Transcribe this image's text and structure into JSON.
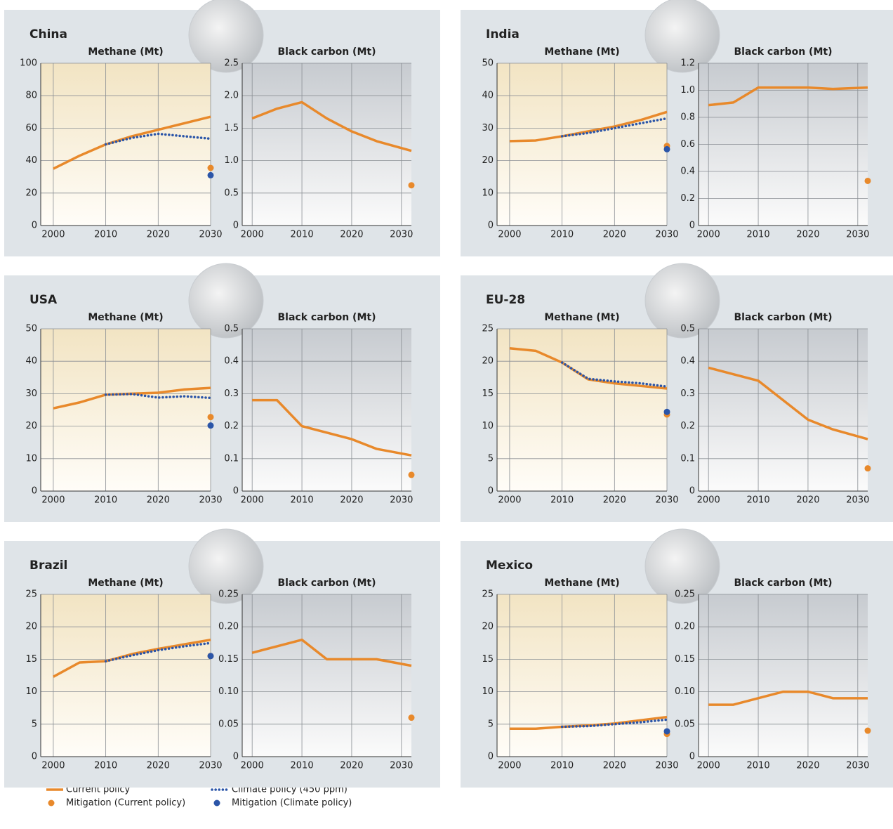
{
  "chart_data": [
    {
      "type": "line",
      "country": "China",
      "title": "Methane (Mt)",
      "x": [
        2000,
        2005,
        2010,
        2015,
        2020,
        2025,
        2030
      ],
      "xlim": [
        1997.6,
        2030
      ],
      "xticks": [
        2000,
        2010,
        2020,
        2030
      ],
      "ylim": [
        0,
        100
      ],
      "yticks": [
        0,
        20,
        40,
        60,
        80,
        100
      ],
      "grid": true,
      "series": [
        {
          "name": "Current policy",
          "color": "#e8892b",
          "style": "solid",
          "values": [
            35,
            43,
            50,
            55,
            59,
            63,
            67
          ]
        },
        {
          "name": "Climate policy (450 ppm)",
          "color": "#2b55a8",
          "style": "dotted",
          "values": [
            null,
            null,
            50,
            54,
            56.5,
            55,
            53.5
          ]
        },
        {
          "name": "Mitigation (Current policy)",
          "color": "#e8892b",
          "style": "point",
          "values": [
            null,
            null,
            null,
            null,
            null,
            null,
            35.5
          ]
        },
        {
          "name": "Mitigation (Climate policy)",
          "color": "#2b55a8",
          "style": "point",
          "values": [
            null,
            null,
            null,
            null,
            null,
            null,
            31
          ]
        }
      ]
    },
    {
      "type": "line",
      "title": "Black carbon (Mt)",
      "x": [
        2000,
        2005,
        2010,
        2015,
        2020,
        2025,
        2032
      ],
      "xlim": [
        1998,
        2032
      ],
      "xticks": [
        2000,
        2010,
        2020,
        2030
      ],
      "ylim": [
        0,
        2.5
      ],
      "yticks": [
        0,
        0.5,
        {
          "value": 1,
          "label": "1.0"
        },
        1.5,
        {
          "value": 2,
          "label": "2.0"
        },
        2.5
      ],
      "grid": true,
      "series": [
        {
          "name": "Current policy",
          "color": "#e8892b",
          "style": "solid",
          "values": [
            1.65,
            1.8,
            1.9,
            1.65,
            1.45,
            1.3,
            1.15
          ]
        },
        {
          "name": "Mitigation (Current policy)",
          "color": "#e8892b",
          "style": "point",
          "values": [
            null,
            null,
            null,
            null,
            null,
            null,
            0.62
          ]
        }
      ]
    },
    {
      "type": "line",
      "country": "India",
      "title": "Methane (Mt)",
      "x": [
        2000,
        2005,
        2010,
        2015,
        2020,
        2025,
        2030
      ],
      "xlim": [
        1997.6,
        2030
      ],
      "xticks": [
        2000,
        2010,
        2020,
        2030
      ],
      "ylim": [
        0,
        50
      ],
      "yticks": [
        0,
        10,
        20,
        30,
        40,
        50
      ],
      "grid": true,
      "series": [
        {
          "name": "Current policy",
          "color": "#e8892b",
          "style": "solid",
          "values": [
            26,
            26.2,
            27.5,
            29,
            30.5,
            32.5,
            35
          ]
        },
        {
          "name": "Climate policy (450 ppm)",
          "color": "#2b55a8",
          "style": "dotted",
          "values": [
            null,
            null,
            27.5,
            28.5,
            30,
            31.5,
            33
          ]
        },
        {
          "name": "Mitigation (Current policy)",
          "color": "#e8892b",
          "style": "point",
          "values": [
            null,
            null,
            null,
            null,
            null,
            null,
            24.5
          ]
        },
        {
          "name": "Mitigation (Climate policy)",
          "color": "#2b55a8",
          "style": "point",
          "values": [
            null,
            null,
            null,
            null,
            null,
            null,
            23.5
          ]
        }
      ]
    },
    {
      "type": "line",
      "title": "Black carbon (Mt)",
      "x": [
        2000,
        2005,
        2010,
        2015,
        2020,
        2025,
        2032
      ],
      "xlim": [
        1998,
        2032
      ],
      "xticks": [
        2000,
        2010,
        2020,
        2030
      ],
      "ylim": [
        0,
        1.2
      ],
      "yticks": [
        0,
        0.2,
        0.4,
        0.6,
        0.8,
        {
          "value": 1,
          "label": "1.0"
        },
        1.2
      ],
      "grid": true,
      "series": [
        {
          "name": "Current policy",
          "color": "#e8892b",
          "style": "solid",
          "values": [
            0.89,
            0.91,
            1.02,
            1.02,
            1.02,
            1.01,
            1.02
          ]
        },
        {
          "name": "Mitigation (Current policy)",
          "color": "#e8892b",
          "style": "point",
          "values": [
            null,
            null,
            null,
            null,
            null,
            null,
            0.33
          ]
        }
      ]
    },
    {
      "type": "line",
      "country": "USA",
      "title": "Methane (Mt)",
      "x": [
        2000,
        2005,
        2010,
        2015,
        2020,
        2025,
        2030
      ],
      "xlim": [
        1997.6,
        2030
      ],
      "xticks": [
        2000,
        2010,
        2020,
        2030
      ],
      "ylim": [
        0,
        50
      ],
      "yticks": [
        0,
        10,
        20,
        30,
        40,
        50
      ],
      "grid": true,
      "series": [
        {
          "name": "Current policy",
          "color": "#e8892b",
          "style": "solid",
          "values": [
            25.5,
            27.3,
            29.7,
            30,
            30.3,
            31.3,
            31.8
          ]
        },
        {
          "name": "Climate policy (450 ppm)",
          "color": "#2b55a8",
          "style": "dotted",
          "values": [
            null,
            null,
            29.7,
            29.9,
            28.8,
            29.2,
            28.7
          ]
        },
        {
          "name": "Mitigation (Current policy)",
          "color": "#e8892b",
          "style": "point",
          "values": [
            null,
            null,
            null,
            null,
            null,
            null,
            22.8
          ]
        },
        {
          "name": "Mitigation (Climate policy)",
          "color": "#2b55a8",
          "style": "point",
          "values": [
            null,
            null,
            null,
            null,
            null,
            null,
            20.2
          ]
        }
      ]
    },
    {
      "type": "line",
      "title": "Black carbon (Mt)",
      "x": [
        2000,
        2005,
        2010,
        2015,
        2020,
        2025,
        2032
      ],
      "xlim": [
        1998,
        2032
      ],
      "xticks": [
        2000,
        2010,
        2020,
        2030
      ],
      "ylim": [
        0,
        0.5
      ],
      "yticks": [
        0,
        0.1,
        0.2,
        0.3,
        0.4,
        0.5
      ],
      "grid": true,
      "series": [
        {
          "name": "Current policy",
          "color": "#e8892b",
          "style": "solid",
          "values": [
            0.28,
            0.28,
            0.2,
            0.18,
            0.16,
            0.13,
            0.11
          ]
        },
        {
          "name": "Mitigation (Current policy)",
          "color": "#e8892b",
          "style": "point",
          "values": [
            null,
            null,
            null,
            null,
            null,
            null,
            0.05
          ]
        }
      ]
    },
    {
      "type": "line",
      "country": "EU-28",
      "title": "Methane (Mt)",
      "x": [
        2000,
        2005,
        2010,
        2015,
        2020,
        2025,
        2030
      ],
      "xlim": [
        1997.6,
        2030
      ],
      "xticks": [
        2000,
        2010,
        2020,
        2030
      ],
      "ylim": [
        0,
        25
      ],
      "yticks": [
        0,
        5,
        10,
        15,
        20,
        25
      ],
      "grid": true,
      "series": [
        {
          "name": "Current policy",
          "color": "#e8892b",
          "style": "solid",
          "values": [
            22,
            21.6,
            19.8,
            17.2,
            16.6,
            16.2,
            15.8
          ]
        },
        {
          "name": "Climate policy (450 ppm)",
          "color": "#2b55a8",
          "style": "dotted",
          "values": [
            null,
            null,
            19.8,
            17.3,
            16.9,
            16.6,
            16.1
          ]
        },
        {
          "name": "Mitigation (Current policy)",
          "color": "#e8892b",
          "style": "point",
          "values": [
            null,
            null,
            null,
            null,
            null,
            null,
            11.8
          ]
        },
        {
          "name": "Mitigation (Climate policy)",
          "color": "#2b55a8",
          "style": "point",
          "values": [
            null,
            null,
            null,
            null,
            null,
            null,
            12.2
          ]
        }
      ]
    },
    {
      "type": "line",
      "title": "Black carbon (Mt)",
      "x": [
        2000,
        2005,
        2010,
        2015,
        2020,
        2025,
        2032
      ],
      "xlim": [
        1998,
        2032
      ],
      "xticks": [
        2000,
        2010,
        2020,
        2030
      ],
      "ylim": [
        0,
        0.5
      ],
      "yticks": [
        0,
        0.1,
        0.2,
        0.3,
        0.4,
        0.5
      ],
      "grid": true,
      "series": [
        {
          "name": "Current policy",
          "color": "#e8892b",
          "style": "solid",
          "values": [
            0.38,
            0.36,
            0.34,
            0.28,
            0.22,
            0.19,
            0.16
          ]
        },
        {
          "name": "Mitigation (Current policy)",
          "color": "#e8892b",
          "style": "point",
          "values": [
            null,
            null,
            null,
            null,
            null,
            null,
            0.07
          ]
        }
      ]
    },
    {
      "type": "line",
      "country": "Brazil",
      "title": "Methane (Mt)",
      "x": [
        2000,
        2005,
        2010,
        2015,
        2020,
        2025,
        2030
      ],
      "xlim": [
        1997.6,
        2030
      ],
      "xticks": [
        2000,
        2010,
        2020,
        2030
      ],
      "ylim": [
        0,
        25
      ],
      "yticks": [
        0,
        5,
        10,
        15,
        20,
        25
      ],
      "grid": true,
      "series": [
        {
          "name": "Current policy",
          "color": "#e8892b",
          "style": "solid",
          "values": [
            12.3,
            14.5,
            14.7,
            15.8,
            16.6,
            17.3,
            18
          ]
        },
        {
          "name": "Climate policy (450 ppm)",
          "color": "#2b55a8",
          "style": "dotted",
          "values": [
            null,
            null,
            14.7,
            15.6,
            16.4,
            17,
            17.5
          ]
        },
        {
          "name": "Mitigation (Current policy)",
          "color": "#e8892b",
          "style": "point",
          "values": [
            null,
            null,
            null,
            null,
            null,
            null,
            15.5
          ]
        },
        {
          "name": "Mitigation (Climate policy)",
          "color": "#2b55a8",
          "style": "point",
          "values": [
            null,
            null,
            null,
            null,
            null,
            null,
            15.5
          ]
        }
      ]
    },
    {
      "type": "line",
      "title": "Black carbon (Mt)",
      "x": [
        2000,
        2005,
        2010,
        2015,
        2020,
        2025,
        2032
      ],
      "xlim": [
        1998,
        2032
      ],
      "xticks": [
        2000,
        2010,
        2020,
        2030
      ],
      "ylim": [
        0,
        0.25
      ],
      "yticks": [
        0,
        0.05,
        {
          "value": 0.1,
          "label": "0.10"
        },
        0.15,
        {
          "value": 0.2,
          "label": "0.20"
        },
        0.25
      ],
      "grid": true,
      "series": [
        {
          "name": "Current policy",
          "color": "#e8892b",
          "style": "solid",
          "values": [
            0.16,
            0.17,
            0.18,
            0.15,
            0.15,
            0.15,
            0.14
          ]
        },
        {
          "name": "Mitigation (Current policy)",
          "color": "#e8892b",
          "style": "point",
          "values": [
            null,
            null,
            null,
            null,
            null,
            null,
            0.06
          ]
        }
      ]
    },
    {
      "type": "line",
      "country": "Mexico",
      "title": "Methane (Mt)",
      "x": [
        2000,
        2005,
        2010,
        2015,
        2020,
        2025,
        2030
      ],
      "xlim": [
        1997.6,
        2030
      ],
      "xticks": [
        2000,
        2010,
        2020,
        2030
      ],
      "ylim": [
        0,
        25
      ],
      "yticks": [
        0,
        5,
        10,
        15,
        20,
        25
      ],
      "grid": true,
      "series": [
        {
          "name": "Current policy",
          "color": "#e8892b",
          "style": "solid",
          "values": [
            4.3,
            4.3,
            4.6,
            4.8,
            5.1,
            5.6,
            6.1
          ]
        },
        {
          "name": "Climate policy (450 ppm)",
          "color": "#2b55a8",
          "style": "dotted",
          "values": [
            null,
            null,
            4.6,
            4.7,
            5,
            5.3,
            5.7
          ]
        },
        {
          "name": "Mitigation (Current policy)",
          "color": "#e8892b",
          "style": "point",
          "values": [
            null,
            null,
            null,
            null,
            null,
            null,
            3.5
          ]
        },
        {
          "name": "Mitigation (Climate policy)",
          "color": "#2b55a8",
          "style": "point",
          "values": [
            null,
            null,
            null,
            null,
            null,
            null,
            3.9
          ]
        }
      ]
    },
    {
      "type": "line",
      "title": "Black carbon (Mt)",
      "x": [
        2000,
        2005,
        2010,
        2015,
        2020,
        2025,
        2032
      ],
      "xlim": [
        1998,
        2032
      ],
      "xticks": [
        2000,
        2010,
        2020,
        2030
      ],
      "ylim": [
        0,
        0.25
      ],
      "yticks": [
        0,
        0.05,
        {
          "value": 0.1,
          "label": "0.10"
        },
        0.15,
        {
          "value": 0.2,
          "label": "0.20"
        },
        0.25
      ],
      "grid": true,
      "series": [
        {
          "name": "Current policy",
          "color": "#e8892b",
          "style": "solid",
          "values": [
            0.08,
            0.08,
            0.09,
            0.1,
            0.1,
            0.09,
            0.09
          ]
        },
        {
          "name": "Mitigation (Current policy)",
          "color": "#e8892b",
          "style": "point",
          "values": [
            null,
            null,
            null,
            null,
            null,
            null,
            0.04
          ]
        }
      ]
    }
  ]
}
